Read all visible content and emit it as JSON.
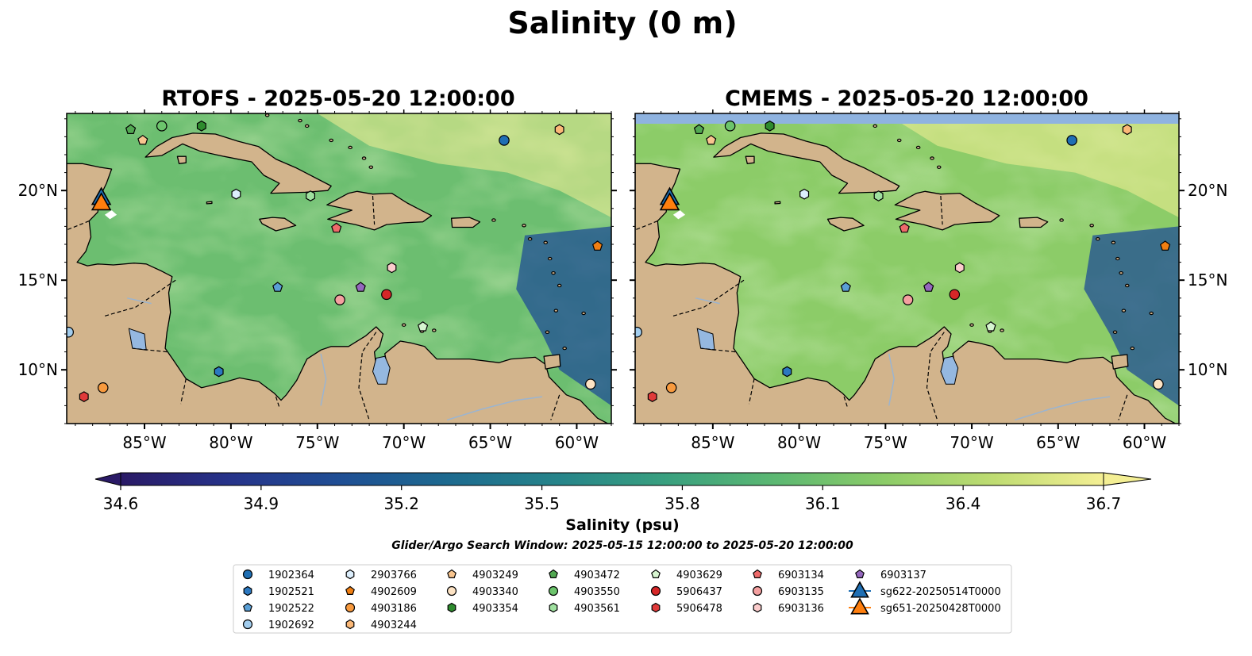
{
  "figure": {
    "suptitle": "Salinity (0 m)",
    "subtitle": "Glider/Argo Search Window: 2025-05-15 12:00:00 to 2025-05-20 12:00:00"
  },
  "panels": [
    {
      "id": "rtofs",
      "title": "RTOFS - 2025-05-20 12:00:00"
    },
    {
      "id": "cmems",
      "title": "CMEMS - 2025-05-20 12:00:00"
    }
  ],
  "map_extent": {
    "lon_min": -89.5,
    "lon_max": -58,
    "lat_min": 7,
    "lat_max": 24.3
  },
  "axes": {
    "lon_ticks": [
      -85,
      -80,
      -75,
      -70,
      -65,
      -60
    ],
    "lon_labels": [
      "85°W",
      "80°W",
      "75°W",
      "70°W",
      "65°W",
      "60°W"
    ],
    "lat_ticks": [
      10,
      15,
      20
    ],
    "lat_labels": [
      "10°N",
      "15°N",
      "20°N"
    ]
  },
  "colorbar": {
    "label": "Salinity (psu)",
    "min": 34.6,
    "max": 36.7,
    "ticks": [
      "34.6",
      "34.9",
      "35.2",
      "35.5",
      "35.8",
      "36.1",
      "36.4",
      "36.7"
    ],
    "colormap": [
      "#2a1a66",
      "#26338a",
      "#1f4e94",
      "#1d6a8f",
      "#26848a",
      "#39a07f",
      "#5cb872",
      "#8ccc68",
      "#bfdc72",
      "#f4ef94"
    ],
    "extend": "both"
  },
  "colors": {
    "land": "#d2b48c",
    "lake": "#95b8e0",
    "deep_pacific": "#2a1a66",
    "missing_band": "#8fb3e0"
  },
  "markers": [
    {
      "label": "1902364",
      "shape": "circle",
      "color": "#1f6fb4",
      "lon": -64.2,
      "lat": 22.8
    },
    {
      "label": "1902521",
      "shape": "hexagon",
      "color": "#2b78c0",
      "lon": -80.7,
      "lat": 9.9
    },
    {
      "label": "1902522",
      "shape": "pentagon",
      "color": "#5a9fd6",
      "lon": -77.3,
      "lat": 14.6
    },
    {
      "label": "1902692",
      "shape": "circle",
      "color": "#a2cdee",
      "lon": -89.4,
      "lat": 12.1
    },
    {
      "label": "2903766",
      "shape": "hexagon",
      "color": "#dceefc",
      "lon": -79.7,
      "lat": 19.8
    },
    {
      "label": "4902609",
      "shape": "pentagon",
      "color": "#f07f13",
      "lon": -58.8,
      "lat": 16.9
    },
    {
      "label": "4903186",
      "shape": "circle",
      "color": "#f89a3e",
      "lon": -87.4,
      "lat": 9.0
    },
    {
      "label": "4903244",
      "shape": "hexagon",
      "color": "#fbb877",
      "lon": -61.0,
      "lat": 23.4
    },
    {
      "label": "4903249",
      "shape": "pentagon",
      "color": "#f8c58f",
      "lon": -85.1,
      "lat": 22.8
    },
    {
      "label": "4903340",
      "shape": "circle",
      "color": "#fde3c4",
      "lon": -59.2,
      "lat": 9.2
    },
    {
      "label": "4903354",
      "shape": "hexagon",
      "color": "#2e8b2e",
      "lon": -81.7,
      "lat": 23.6
    },
    {
      "label": "4903472",
      "shape": "pentagon",
      "color": "#52a852",
      "lon": -85.8,
      "lat": 23.4
    },
    {
      "label": "4903550",
      "shape": "circle",
      "color": "#6cc46c",
      "lon": -84.0,
      "lat": 23.6
    },
    {
      "label": "4903561",
      "shape": "hexagon",
      "color": "#9fe09f",
      "lon": -75.4,
      "lat": 19.7
    },
    {
      "label": "4903629",
      "shape": "pentagon",
      "color": "#d7f5d0",
      "lon": -68.9,
      "lat": 12.4
    },
    {
      "label": "5906437",
      "shape": "circle",
      "color": "#d62728",
      "lon": -71.0,
      "lat": 14.2
    },
    {
      "label": "5906478",
      "shape": "hexagon",
      "color": "#e03a3a",
      "lon": -88.5,
      "lat": 8.5
    },
    {
      "label": "6903134",
      "shape": "pentagon",
      "color": "#ee6a6a",
      "lon": -73.9,
      "lat": 17.9
    },
    {
      "label": "6903135",
      "shape": "circle",
      "color": "#f4a0a0",
      "lon": -73.7,
      "lat": 13.9
    },
    {
      "label": "6903136",
      "shape": "hexagon",
      "color": "#fbcccc",
      "lon": -70.7,
      "lat": 15.7
    },
    {
      "label": "6903137",
      "shape": "pentagon",
      "color": "#9467bd",
      "lon": -72.5,
      "lat": 14.6
    }
  ],
  "gliders": [
    {
      "label": "sg622-20250514T0000",
      "shape": "triangle",
      "color": "#1f6fb4",
      "lon": -87.5,
      "lat": 19.6
    },
    {
      "label": "sg651-20250428T0000",
      "shape": "triangle",
      "color": "#ff7f0e",
      "lon": -87.5,
      "lat": 19.3
    }
  ]
}
